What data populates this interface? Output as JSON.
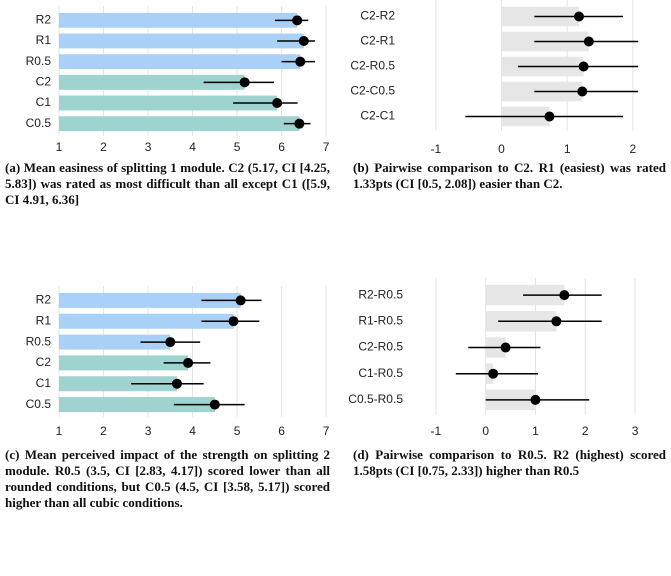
{
  "chart_data": [
    {
      "type": "bar",
      "caption": "(a) Mean easiness of splitting 1 module. C2 (5.17, CI [4.25, 5.83]) was rated as most difficult than all except C1 ([5.9, CI 4.91, 6.36]",
      "categories": [
        "R2",
        "R1",
        "R0.5",
        "C2",
        "C1",
        "C0.5"
      ],
      "values": [
        6.35,
        6.5,
        6.42,
        5.17,
        5.9,
        6.4
      ],
      "lower": [
        5.85,
        5.9,
        6.0,
        4.25,
        4.91,
        6.05
      ],
      "upper": [
        6.6,
        6.75,
        6.75,
        5.83,
        6.36,
        6.65
      ],
      "colors": [
        "#a9d1f7",
        "#a9d1f7",
        "#a9d1f7",
        "#9fd3cf",
        "#9fd3cf",
        "#9fd3cf"
      ],
      "xlim": [
        1,
        7.2
      ],
      "xticks": [
        1,
        2,
        3,
        4,
        5,
        6,
        7
      ],
      "grid": true
    },
    {
      "type": "bar",
      "caption": "(b) Pairwise comparison to C2. R1 (easiest) was rated 1.33pts (CI [0.5, 2.08]) easier than C2.",
      "categories": [
        "C2-R2",
        "C2-R1",
        "C2-R0.5",
        "C2-C0.5",
        "C2-C1"
      ],
      "values": [
        1.18,
        1.33,
        1.25,
        1.23,
        0.73
      ],
      "lower": [
        0.5,
        0.5,
        0.25,
        0.5,
        -0.55
      ],
      "upper": [
        1.85,
        2.08,
        2.08,
        2.08,
        1.85
      ],
      "colors": [
        "#e6e6e6",
        "#e6e6e6",
        "#e6e6e6",
        "#e6e6e6",
        "#e6e6e6"
      ],
      "xlim": [
        -1.5,
        2.2
      ],
      "xticks": [
        -1,
        0,
        1,
        2
      ],
      "grid": true
    },
    {
      "type": "bar",
      "caption": "(c) Mean perceived impact of the strength on splitting 2 module. R0.5 (3.5, CI [2.83, 4.17]) scored lower than all rounded conditions, but C0.5 (4.5, CI [3.58, 5.17]) scored higher than all cubic conditions.",
      "categories": [
        "R2",
        "R1",
        "R0.5",
        "C2",
        "C1",
        "C0.5"
      ],
      "values": [
        5.08,
        4.92,
        3.5,
        3.9,
        3.65,
        4.5
      ],
      "lower": [
        4.2,
        4.2,
        2.83,
        3.35,
        2.62,
        3.58
      ],
      "upper": [
        5.55,
        5.5,
        4.17,
        4.4,
        4.25,
        5.17
      ],
      "colors": [
        "#a9d1f7",
        "#a9d1f7",
        "#a9d1f7",
        "#9fd3cf",
        "#9fd3cf",
        "#9fd3cf"
      ],
      "xlim": [
        1,
        7.2
      ],
      "xticks": [
        1,
        2,
        3,
        4,
        5,
        6,
        7
      ],
      "grid": true
    },
    {
      "type": "bar",
      "caption": "(d) Pairwise comparison to R0.5. R2 (highest) scored 1.58pts (CI [0.75, 2.33]) higher than R0.5",
      "categories": [
        "R2-R0.5",
        "R1-R0.5",
        "C2-R0.5",
        "C1-R0.5",
        "C0.5-R0.5"
      ],
      "values": [
        1.58,
        1.42,
        0.4,
        0.15,
        1.0
      ],
      "lower": [
        0.75,
        0.25,
        -0.35,
        -0.6,
        0
      ],
      "upper": [
        2.33,
        2.33,
        1.1,
        1.05,
        2.08
      ],
      "colors": [
        "#e6e6e6",
        "#e6e6e6",
        "#e6e6e6",
        "#e6e6e6",
        "#e6e6e6"
      ],
      "xlim": [
        -1.5,
        3.2
      ],
      "xticks": [
        -1,
        0,
        1,
        2,
        3
      ],
      "grid": true
    }
  ]
}
